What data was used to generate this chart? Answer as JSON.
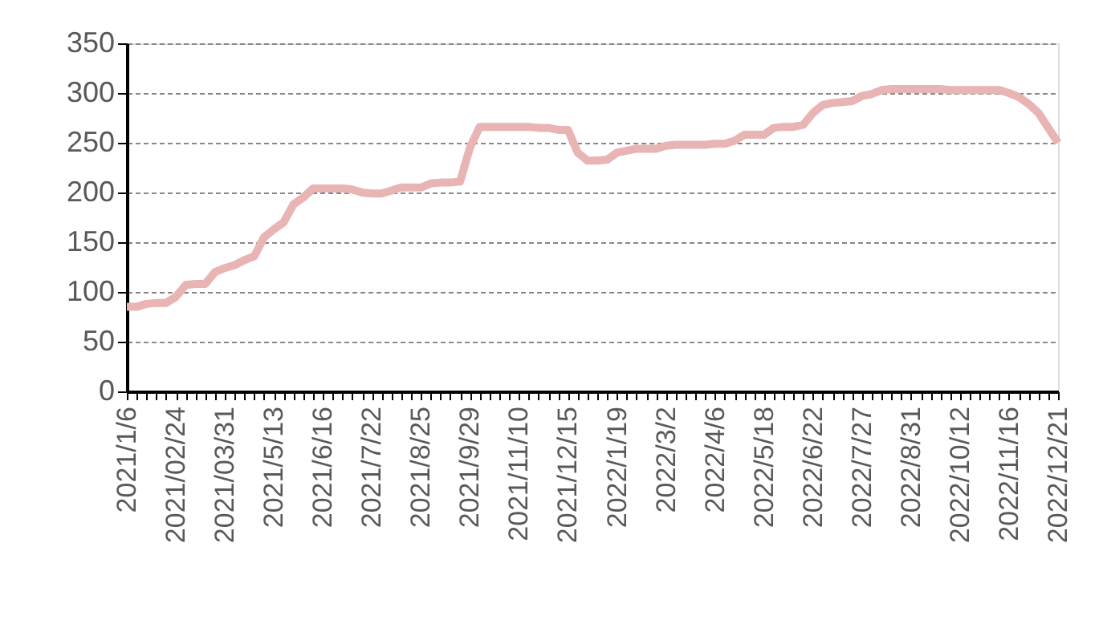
{
  "chart_data": {
    "type": "line",
    "categories": [
      "2021/1/6",
      null,
      null,
      null,
      null,
      "2021/02/24",
      null,
      null,
      null,
      null,
      "2021/03/31",
      null,
      null,
      null,
      null,
      "2021/5/13",
      null,
      null,
      null,
      null,
      "2021/6/16",
      null,
      null,
      null,
      null,
      "2021/7/22",
      null,
      null,
      null,
      null,
      "2021/8/25",
      null,
      null,
      null,
      null,
      "2021/9/29",
      null,
      null,
      null,
      null,
      "2021/11/10",
      null,
      null,
      null,
      null,
      "2021/12/15",
      null,
      null,
      null,
      null,
      "2022/1/19",
      null,
      null,
      null,
      null,
      "2022/3/2",
      null,
      null,
      null,
      null,
      "2022/4/6",
      null,
      null,
      null,
      null,
      "2022/5/18",
      null,
      null,
      null,
      null,
      "2022/6/22",
      null,
      null,
      null,
      null,
      "2022/7/27",
      null,
      null,
      null,
      null,
      "2022/8/31",
      null,
      null,
      null,
      null,
      "2022/10/12",
      null,
      null,
      null,
      null,
      "2022/11/16",
      null,
      null,
      null,
      null,
      "2022/12/21"
    ],
    "series": [
      {
        "color": "#e8b4b4",
        "values": [
          85,
          85,
          88,
          89,
          89,
          95,
          107,
          108,
          108,
          120,
          124,
          127,
          132,
          136,
          155,
          163,
          170,
          188,
          195,
          204,
          204,
          204,
          204,
          203,
          200,
          199,
          199,
          202,
          205,
          205,
          205,
          209,
          210,
          210,
          211,
          245,
          266,
          266,
          266,
          266,
          266,
          266,
          265,
          265,
          263,
          263,
          240,
          232,
          232,
          233,
          240,
          242,
          244,
          244,
          244,
          247,
          248,
          248,
          248,
          248,
          249,
          249,
          252,
          258,
          258,
          258,
          265,
          266,
          266,
          268,
          280,
          288,
          290,
          291,
          292,
          297,
          299,
          303,
          304,
          304,
          304,
          304,
          304,
          304,
          303,
          303,
          303,
          303,
          303,
          303,
          300,
          296,
          289,
          280,
          265,
          250
        ]
      }
    ],
    "ylim": [
      0,
      350
    ],
    "yticks": [
      0,
      50,
      100,
      150,
      200,
      250,
      300,
      350
    ],
    "grid": "y",
    "legend": false,
    "marker": "none",
    "line_style": "solid"
  }
}
